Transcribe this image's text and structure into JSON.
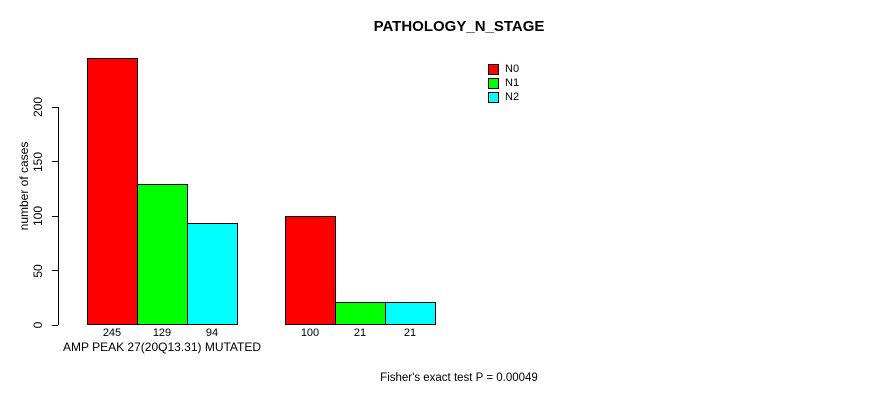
{
  "title": "PATHOLOGY_N_STAGE",
  "footer": {
    "text": "Fisher's exact test P = 0.00049"
  },
  "legend": {
    "items": [
      {
        "label": "N0",
        "color": "#ff0000"
      },
      {
        "label": "N1",
        "color": "#00ff00"
      },
      {
        "label": "N2",
        "color": "#00ffff"
      }
    ]
  },
  "chart_data": {
    "type": "bar",
    "title": "PATHOLOGY_N_STAGE",
    "ylabel": "number of cases",
    "xlabel": "",
    "categories": [
      "AMP PEAK 27(20Q13.31) MUTATED",
      ""
    ],
    "series": [
      {
        "name": "N0",
        "color": "#ff0000",
        "values": [
          245,
          100
        ]
      },
      {
        "name": "N1",
        "color": "#00ff00",
        "values": [
          129,
          21
        ]
      },
      {
        "name": "N2",
        "color": "#00ffff",
        "values": [
          94,
          21
        ]
      }
    ],
    "bar_value_labels": [
      [
        245,
        129,
        94
      ],
      [
        100,
        21,
        21
      ]
    ],
    "yticks": [
      0,
      50,
      100,
      150,
      200
    ],
    "ylim": [
      0,
      250
    ],
    "grid": false,
    "legend_position": "top-right-inside",
    "annotation": "Fisher's exact test P = 0.00049"
  }
}
